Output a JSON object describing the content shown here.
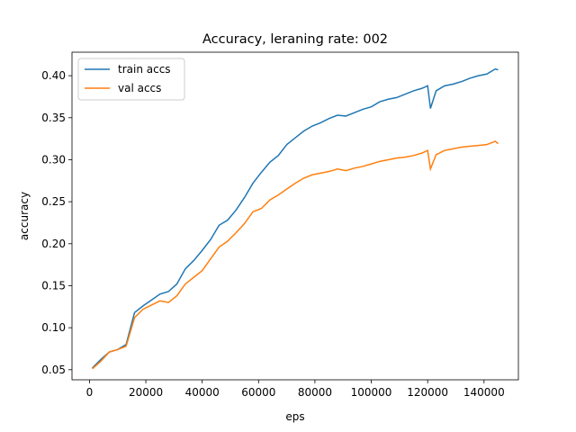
{
  "chart_data": {
    "type": "line",
    "title": "Accuracy, leraning rate: 002",
    "xlabel": "eps",
    "ylabel": "accuracy",
    "x": [
      1000,
      4000,
      7000,
      10000,
      13000,
      16000,
      19000,
      22000,
      25000,
      28000,
      31000,
      34000,
      37000,
      40000,
      43000,
      46000,
      49000,
      52000,
      55000,
      58000,
      61000,
      64000,
      67000,
      70000,
      73000,
      76000,
      79000,
      82000,
      85000,
      88000,
      91000,
      94000,
      97000,
      100000,
      103000,
      106000,
      109000,
      112000,
      115000,
      118000,
      120000,
      121000,
      123000,
      126000,
      129000,
      132000,
      135000,
      138000,
      141000,
      144000,
      145000
    ],
    "series": [
      {
        "name": "train accs",
        "color": "#1f77b4",
        "values": [
          0.052,
          0.062,
          0.071,
          0.074,
          0.08,
          0.118,
          0.126,
          0.133,
          0.14,
          0.143,
          0.152,
          0.17,
          0.18,
          0.192,
          0.205,
          0.222,
          0.228,
          0.24,
          0.255,
          0.272,
          0.285,
          0.297,
          0.305,
          0.318,
          0.326,
          0.334,
          0.34,
          0.344,
          0.349,
          0.353,
          0.352,
          0.356,
          0.36,
          0.363,
          0.369,
          0.372,
          0.374,
          0.378,
          0.382,
          0.385,
          0.388,
          0.361,
          0.382,
          0.388,
          0.39,
          0.393,
          0.397,
          0.4,
          0.402,
          0.408,
          0.407
        ]
      },
      {
        "name": "val accs",
        "color": "#ff7f0e",
        "values": [
          0.051,
          0.06,
          0.071,
          0.074,
          0.078,
          0.112,
          0.122,
          0.127,
          0.132,
          0.13,
          0.138,
          0.152,
          0.16,
          0.168,
          0.182,
          0.196,
          0.203,
          0.213,
          0.224,
          0.238,
          0.242,
          0.252,
          0.258,
          0.265,
          0.272,
          0.278,
          0.282,
          0.284,
          0.286,
          0.289,
          0.287,
          0.29,
          0.292,
          0.295,
          0.298,
          0.3,
          0.302,
          0.303,
          0.305,
          0.308,
          0.311,
          0.289,
          0.306,
          0.311,
          0.313,
          0.315,
          0.316,
          0.317,
          0.318,
          0.322,
          0.319
        ]
      }
    ],
    "xlim": [
      -6200,
      152200
    ],
    "ylim": [
      0.038,
      0.428
    ],
    "xticks": [
      0,
      20000,
      40000,
      60000,
      80000,
      100000,
      120000,
      140000
    ],
    "yticks": [
      0.05,
      {
        "value": 0.1,
        "label": "0.10"
      },
      0.15,
      {
        "value": 0.2,
        "label": "0.20"
      },
      0.25,
      {
        "value": 0.3,
        "label": "0.30"
      },
      0.35,
      {
        "value": 0.4,
        "label": "0.40"
      }
    ],
    "legend": "upper left"
  }
}
